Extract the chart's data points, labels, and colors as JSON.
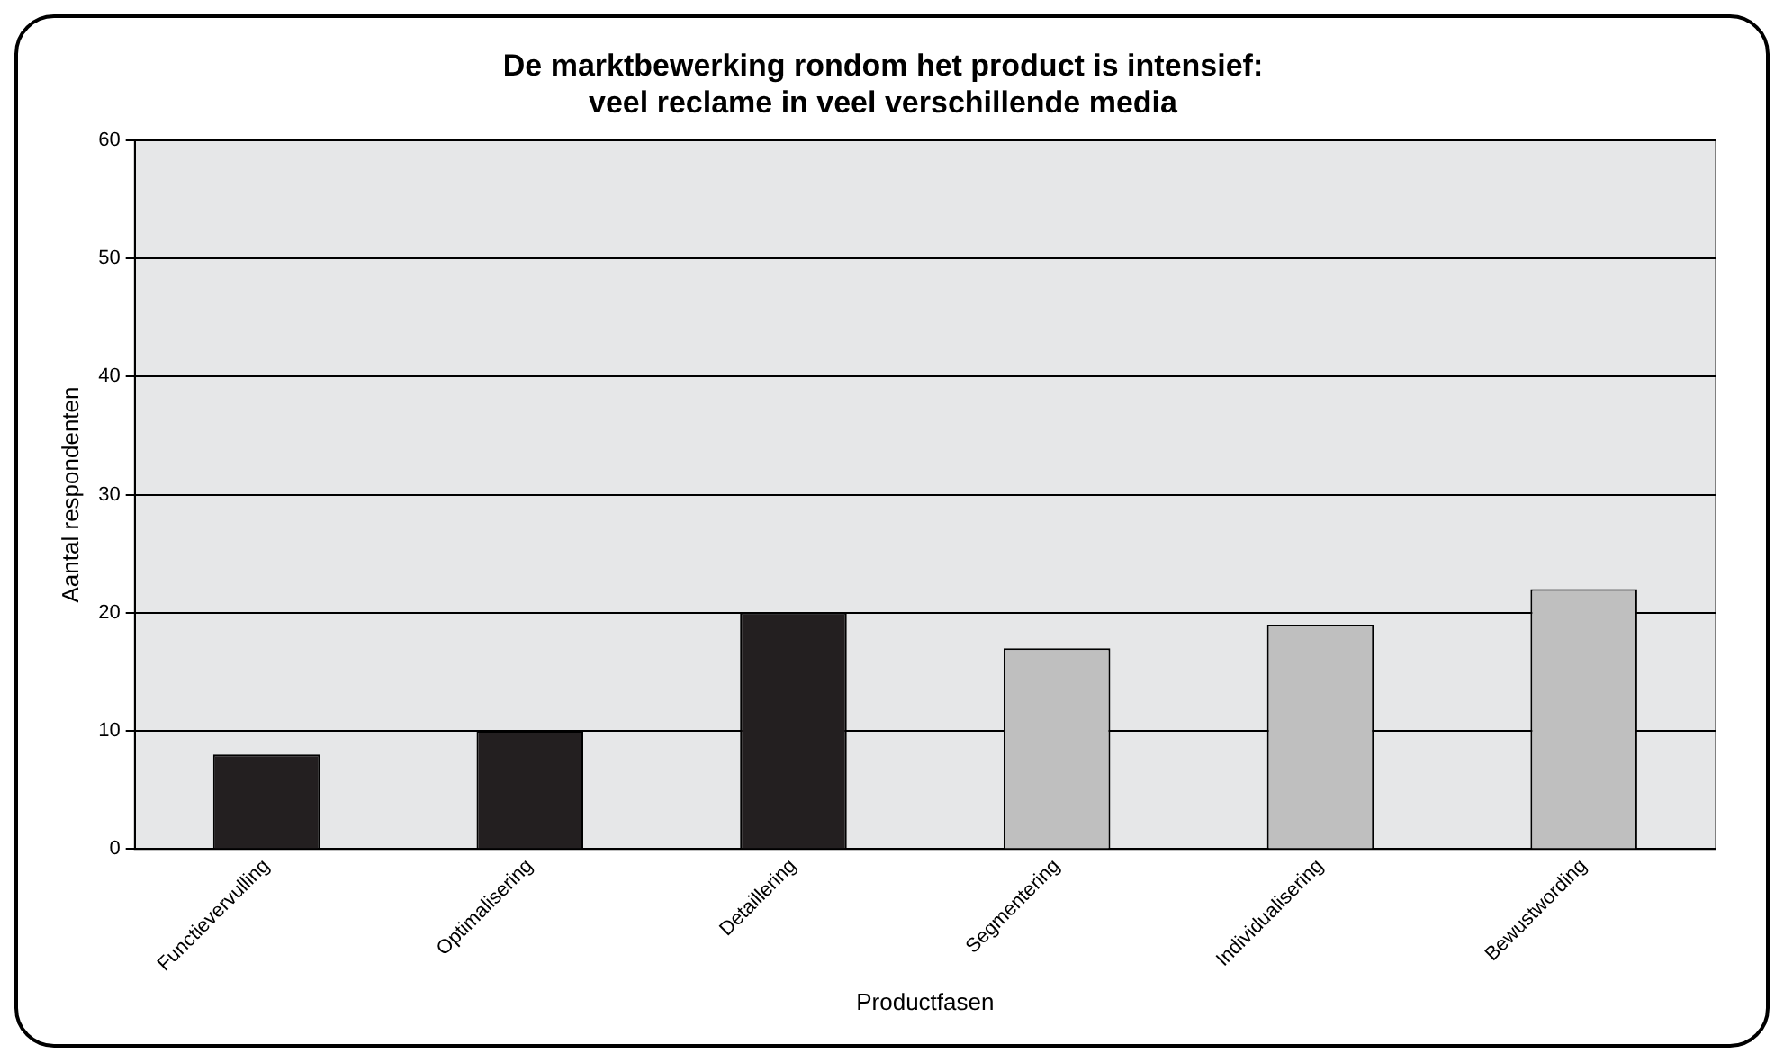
{
  "chart_data": {
    "type": "bar",
    "title": [
      "De marktbewerking rondom het product is intensief:",
      "veel reclame in veel verschillende media"
    ],
    "xlabel": "Productfasen",
    "ylabel": "Aantal respondenten",
    "categories": [
      "Functievervulling",
      "Optimalisering",
      "Detaillering",
      "Segmentering",
      "Individualisering",
      "Bewustwording"
    ],
    "values": [
      8,
      10,
      20,
      17,
      19,
      22
    ],
    "colors": [
      "#231f20",
      "#231f20",
      "#231f20",
      "#bfbfbf",
      "#bfbfbf",
      "#bfbfbf"
    ],
    "ylim": [
      0,
      60
    ],
    "yticks": [
      0,
      10,
      20,
      30,
      40,
      50,
      60
    ],
    "grid": "y",
    "legend": false
  }
}
